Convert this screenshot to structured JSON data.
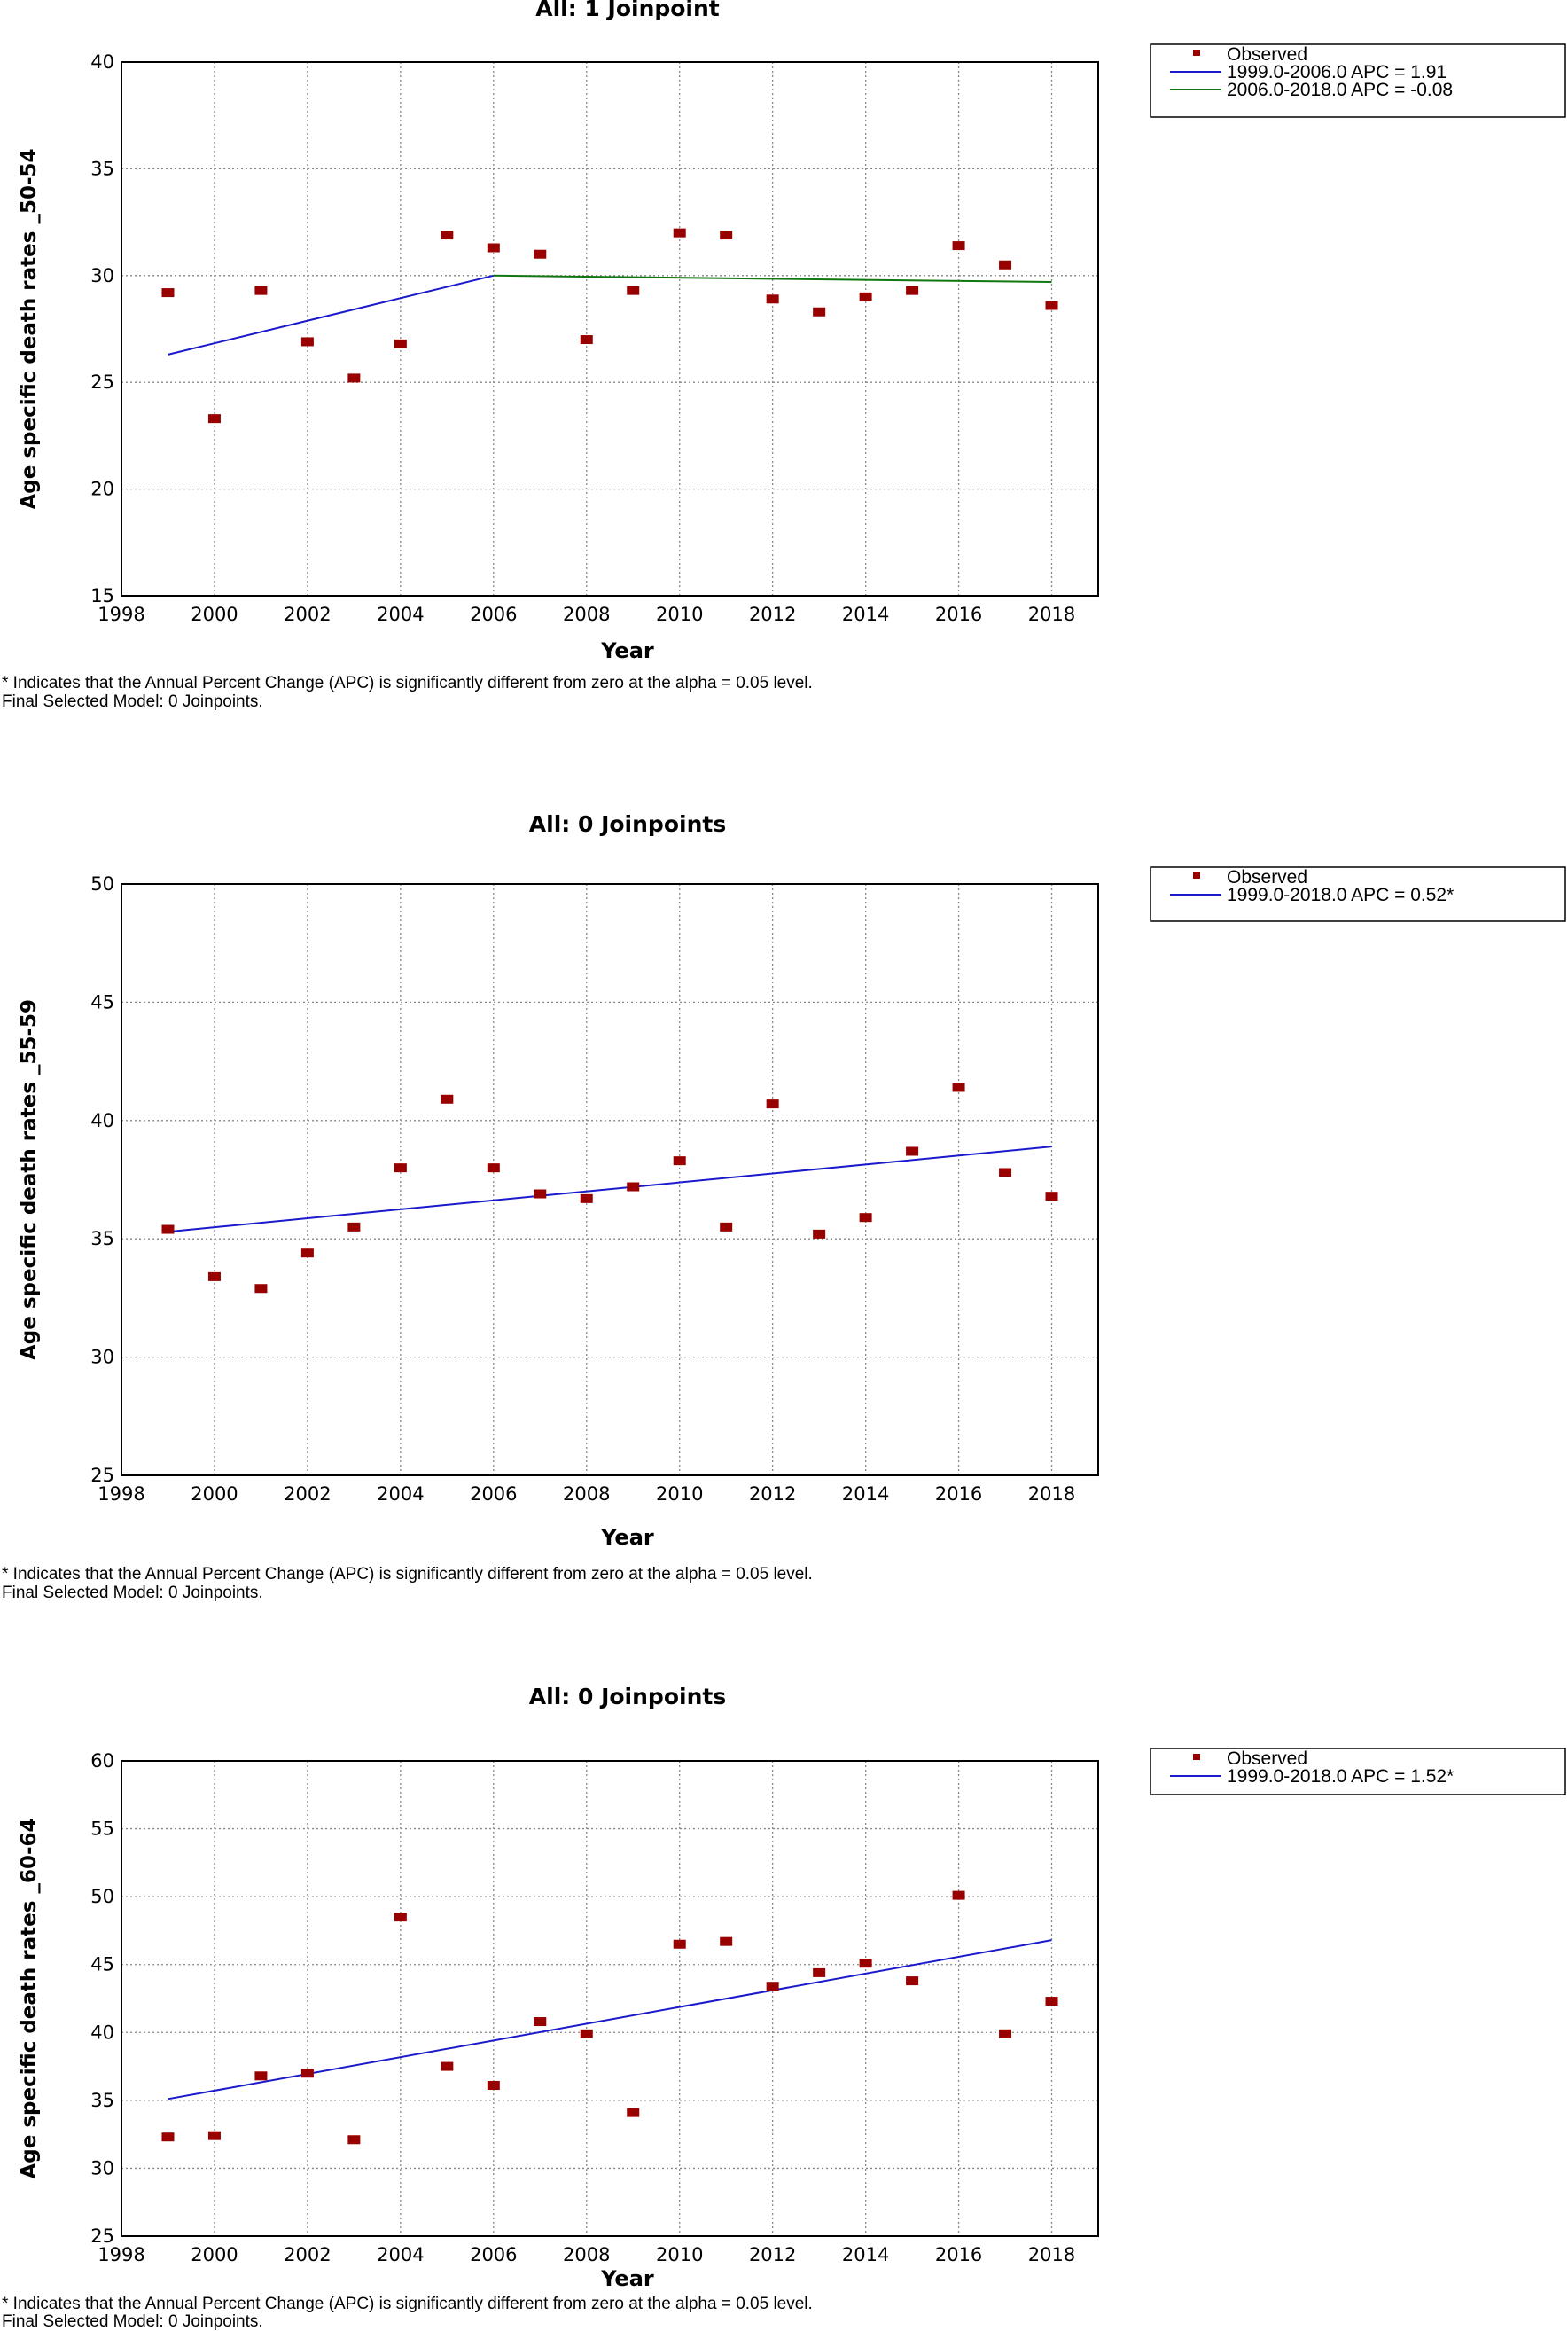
{
  "footnote_line1": "* Indicates that the Annual Percent Change (APC) is significantly different from zero at the alpha = 0.05 level.",
  "footnote_line2": "Final Selected Model: 0 Joinpoints.",
  "colors": {
    "observed": "#990000",
    "segment1": "#1a1acc",
    "segment2": "#117711",
    "grid": "#888888"
  },
  "chart_data": [
    {
      "type": "scatter",
      "title": "All: 1 Joinpoint",
      "xlabel": "Year",
      "ylabel": "Age specific death rates _50-54",
      "xlim": [
        1998,
        2019.0
      ],
      "ylim": [
        15,
        40
      ],
      "xticks": [
        1998,
        2000,
        2002,
        2004,
        2006,
        2008,
        2010,
        2012,
        2014,
        2016,
        2018
      ],
      "yticks": [
        15,
        20,
        25,
        30,
        35,
        40
      ],
      "grid": true,
      "legend_position": "outside-right",
      "observed_label": "Observed",
      "observed": {
        "x": [
          1999,
          2000,
          2001,
          2002,
          2003,
          2004,
          2005,
          2006,
          2007,
          2008,
          2009,
          2010,
          2011,
          2012,
          2013,
          2014,
          2015,
          2016,
          2017,
          2018
        ],
        "y": [
          29.2,
          23.3,
          29.3,
          26.9,
          25.2,
          26.8,
          31.9,
          31.3,
          31.0,
          27.0,
          29.3,
          32.0,
          31.9,
          28.9,
          28.3,
          29.0,
          29.3,
          31.4,
          30.5,
          28.6
        ]
      },
      "fits": [
        {
          "label": "1999.0-2006.0 APC  =  1.91",
          "color": "#1a1acc",
          "x": [
            1999,
            2006
          ],
          "y": [
            26.3,
            30.0
          ]
        },
        {
          "label": "2006.0-2018.0 APC  = -0.08",
          "color": "#117711",
          "x": [
            2006,
            2018
          ],
          "y": [
            30.0,
            29.7
          ]
        }
      ]
    },
    {
      "type": "scatter",
      "title": "All: 0 Joinpoints",
      "xlabel": "Year",
      "ylabel": "Age specific death rates _55-59",
      "xlim": [
        1998,
        2019.0
      ],
      "ylim": [
        25,
        50
      ],
      "xticks": [
        1998,
        2000,
        2002,
        2004,
        2006,
        2008,
        2010,
        2012,
        2014,
        2016,
        2018
      ],
      "yticks": [
        25,
        30,
        35,
        40,
        45,
        50
      ],
      "grid": true,
      "legend_position": "outside-right",
      "observed_label": "Observed",
      "observed": {
        "x": [
          1999,
          2000,
          2001,
          2002,
          2003,
          2004,
          2005,
          2006,
          2007,
          2008,
          2009,
          2010,
          2011,
          2012,
          2013,
          2014,
          2015,
          2016,
          2017,
          2018
        ],
        "y": [
          35.4,
          33.4,
          32.9,
          34.4,
          35.5,
          38.0,
          40.9,
          38.0,
          36.9,
          36.7,
          37.2,
          38.3,
          35.5,
          40.7,
          35.2,
          35.9,
          38.7,
          41.4,
          37.8,
          36.8
        ]
      },
      "fits": [
        {
          "label": "1999.0-2018.0 APC  = 0.52*",
          "color": "#1a1acc",
          "x": [
            1999,
            2018
          ],
          "y": [
            35.3,
            38.9
          ]
        }
      ]
    },
    {
      "type": "scatter",
      "title": "All: 0 Joinpoints",
      "xlabel": "Year",
      "ylabel": "Age specific death rates _60-64",
      "xlim": [
        1998,
        2019.0
      ],
      "ylim": [
        25,
        60
      ],
      "xticks": [
        1998,
        2000,
        2002,
        2004,
        2006,
        2008,
        2010,
        2012,
        2014,
        2016,
        2018
      ],
      "yticks": [
        25,
        30,
        35,
        40,
        45,
        50,
        55,
        60
      ],
      "grid": true,
      "legend_position": "outside-right",
      "observed_label": "Observed",
      "observed": {
        "x": [
          1999,
          2000,
          2001,
          2002,
          2003,
          2004,
          2005,
          2006,
          2007,
          2008,
          2009,
          2010,
          2011,
          2012,
          2013,
          2014,
          2015,
          2016,
          2017,
          2018
        ],
        "y": [
          32.3,
          32.4,
          36.8,
          37.0,
          32.1,
          48.5,
          37.5,
          36.1,
          40.8,
          39.9,
          34.1,
          46.5,
          46.7,
          43.4,
          44.4,
          45.1,
          43.8,
          50.1,
          39.9,
          42.3
        ]
      },
      "fits": [
        {
          "label": "1999.0-2018.0 APC  = 1.52*",
          "color": "#1a1acc",
          "x": [
            1999,
            2018
          ],
          "y": [
            35.1,
            46.8
          ]
        }
      ]
    }
  ]
}
